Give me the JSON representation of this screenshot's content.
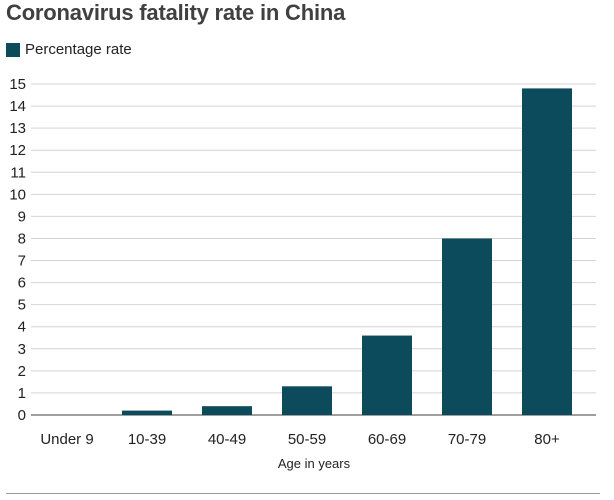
{
  "chart_data": {
    "type": "bar",
    "title": "Coronavirus fatality rate in China",
    "xlabel": "Age in years",
    "ylabel": "",
    "ylim": [
      0,
      15
    ],
    "yticks": [
      0,
      1,
      2,
      3,
      4,
      5,
      6,
      7,
      8,
      9,
      10,
      11,
      12,
      13,
      14,
      15
    ],
    "grid": true,
    "legend_position": "top-left",
    "categories": [
      "Under 9",
      "10-39",
      "40-49",
      "50-59",
      "60-69",
      "70-79",
      "80+"
    ],
    "series": [
      {
        "name": "Percentage rate",
        "color": "#0b4b5c",
        "values": [
          0,
          0.2,
          0.4,
          1.3,
          3.6,
          8.0,
          14.8
        ]
      }
    ]
  }
}
